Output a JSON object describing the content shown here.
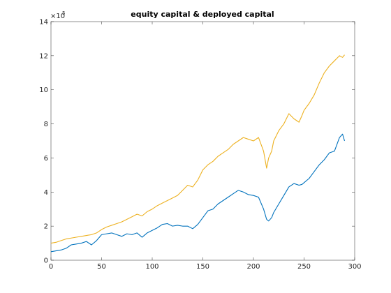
{
  "chart_data": {
    "type": "line",
    "title": "equity capital & deployed capital",
    "xlabel": "",
    "ylabel": "",
    "xlim": [
      0,
      300
    ],
    "ylim": [
      0,
      1400000
    ],
    "xticks": [
      0,
      50,
      100,
      150,
      200,
      250,
      300
    ],
    "yticks": [
      0,
      2,
      4,
      6,
      8,
      10,
      12,
      14
    ],
    "y_multiplier_label": "×10",
    "y_multiplier_exponent": "5",
    "grid": false,
    "legend": "none",
    "series": [
      {
        "color": "#EDB120",
        "x": [
          0,
          5,
          10,
          15,
          20,
          25,
          30,
          35,
          40,
          45,
          50,
          55,
          60,
          65,
          70,
          75,
          80,
          85,
          90,
          95,
          100,
          105,
          110,
          115,
          120,
          125,
          130,
          135,
          140,
          145,
          150,
          155,
          160,
          165,
          170,
          175,
          180,
          185,
          190,
          195,
          200,
          205,
          210,
          213,
          215,
          218,
          220,
          225,
          230,
          235,
          240,
          245,
          248,
          250,
          255,
          260,
          265,
          270,
          275,
          280,
          285,
          288,
          290
        ],
        "y": [
          100000,
          105000,
          115000,
          125000,
          130000,
          135000,
          140000,
          145000,
          150000,
          160000,
          180000,
          195000,
          205000,
          215000,
          225000,
          240000,
          255000,
          270000,
          260000,
          285000,
          300000,
          320000,
          335000,
          350000,
          365000,
          380000,
          410000,
          440000,
          430000,
          470000,
          530000,
          560000,
          580000,
          610000,
          630000,
          650000,
          680000,
          700000,
          720000,
          710000,
          700000,
          720000,
          640000,
          540000,
          600000,
          640000,
          700000,
          760000,
          800000,
          860000,
          830000,
          810000,
          850000,
          880000,
          920000,
          970000,
          1040000,
          1100000,
          1140000,
          1170000,
          1200000,
          1190000,
          1205000
        ]
      },
      {
        "color": "#0072BD",
        "x": [
          0,
          5,
          10,
          15,
          20,
          25,
          30,
          35,
          40,
          45,
          50,
          55,
          60,
          65,
          70,
          75,
          80,
          85,
          90,
          95,
          100,
          105,
          110,
          115,
          120,
          125,
          130,
          135,
          140,
          145,
          150,
          155,
          160,
          165,
          170,
          175,
          180,
          185,
          190,
          195,
          200,
          205,
          210,
          213,
          215,
          218,
          220,
          225,
          230,
          235,
          240,
          245,
          248,
          250,
          255,
          260,
          265,
          270,
          275,
          280,
          285,
          288,
          290
        ],
        "y": [
          50000,
          55000,
          60000,
          70000,
          90000,
          95000,
          100000,
          110000,
          90000,
          115000,
          150000,
          155000,
          160000,
          150000,
          140000,
          155000,
          150000,
          160000,
          135000,
          160000,
          175000,
          190000,
          210000,
          215000,
          200000,
          205000,
          200000,
          200000,
          185000,
          210000,
          250000,
          290000,
          300000,
          330000,
          350000,
          370000,
          390000,
          410000,
          400000,
          385000,
          380000,
          370000,
          300000,
          240000,
          230000,
          250000,
          280000,
          330000,
          380000,
          430000,
          450000,
          440000,
          445000,
          455000,
          480000,
          520000,
          560000,
          590000,
          630000,
          640000,
          720000,
          740000,
          700000
        ]
      }
    ]
  }
}
